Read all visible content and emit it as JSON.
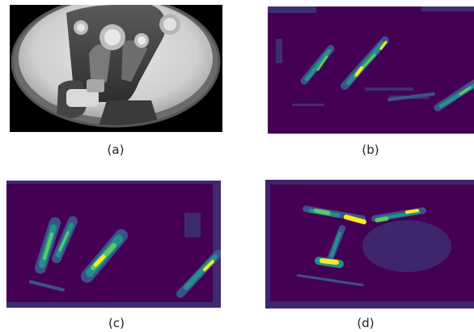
{
  "figure": {
    "panels": [
      {
        "id": "a",
        "caption": "(a)",
        "kind": "grayscale-wheel-image"
      },
      {
        "id": "b",
        "caption": "(b)",
        "kind": "heatmap"
      },
      {
        "id": "c",
        "caption": "(c)",
        "kind": "heatmap"
      },
      {
        "id": "d",
        "caption": "(d)",
        "kind": "heatmap"
      }
    ],
    "colormap": {
      "background": "#440154",
      "low": "#3b528b",
      "mid": "#21918c",
      "high": "#5ec962",
      "peak": "#fde725"
    }
  }
}
